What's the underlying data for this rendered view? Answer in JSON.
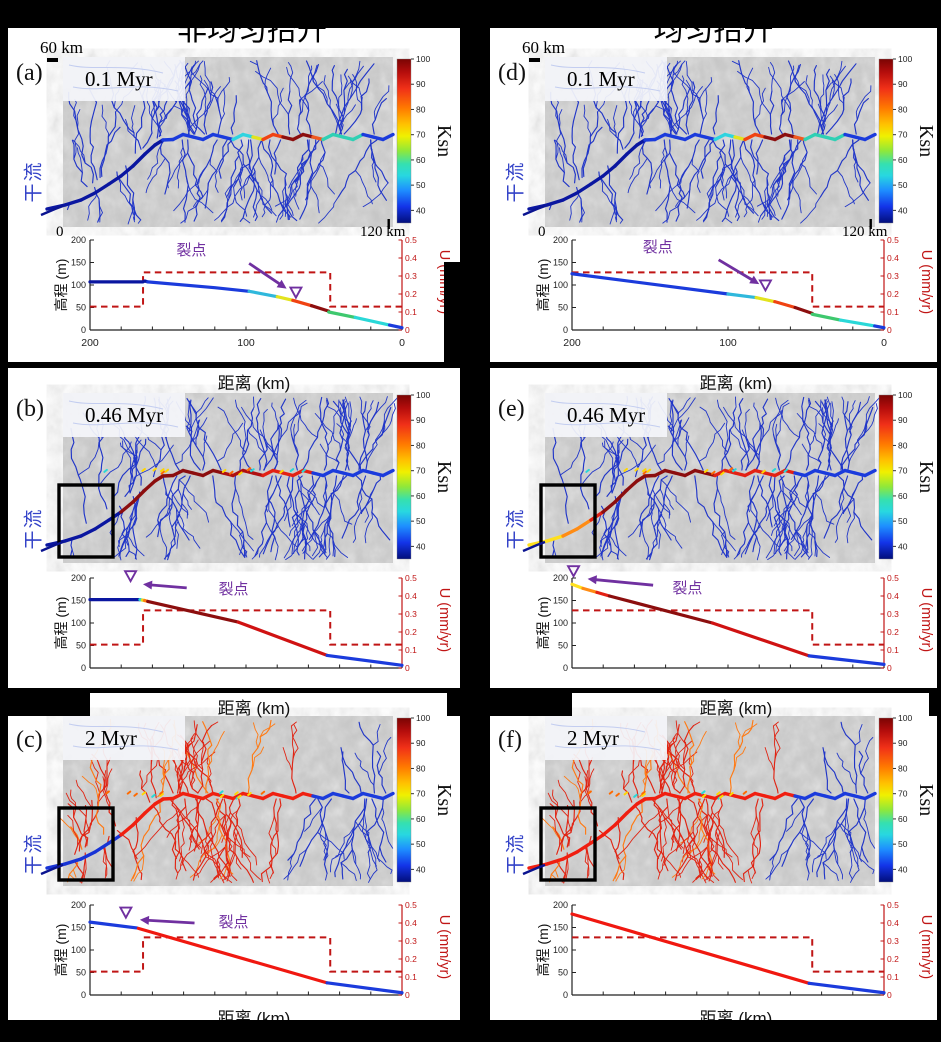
{
  "titles": {
    "left": "非均匀抬升",
    "right": "均匀抬升"
  },
  "shared": {
    "scale_bar_label": "60 km",
    "map_origin_label": "0",
    "map_extent_label": "120 km",
    "main_stream_label": "干流",
    "colorbar": {
      "label": "Ksn",
      "ticks": [
        100,
        90,
        80,
        70,
        60,
        50,
        40
      ],
      "min": 35,
      "max": 100,
      "gradient": [
        [
          "#7a0403",
          0
        ],
        [
          "#b50d0c",
          8
        ],
        [
          "#f03018",
          18
        ],
        [
          "#ff7a00",
          30
        ],
        [
          "#ffc300",
          40
        ],
        [
          "#f0f000",
          47
        ],
        [
          "#8fe83a",
          56
        ],
        [
          "#35e0b0",
          64
        ],
        [
          "#28d8e0",
          71
        ],
        [
          "#1e8fff",
          80
        ],
        [
          "#1334e8",
          90
        ],
        [
          "#020e7a",
          100
        ]
      ]
    },
    "profile_axes": {
      "ylabel": "高程 (m)",
      "xlabel": "距离 (km)",
      "right_ylabel": "U (mm/yr)",
      "left_ticks": [
        0,
        50,
        100,
        150,
        200
      ],
      "right_ticks": [
        0,
        0.1,
        0.2,
        0.3,
        0.4,
        0.5
      ],
      "x_ticks": [
        200,
        180,
        160,
        140,
        120,
        100,
        80,
        60,
        40,
        20,
        0
      ],
      "x_tick_labels": [
        200,
        100,
        0
      ],
      "annotation_label": "裂点"
    },
    "colors": {
      "uplift": "#c01515",
      "annotation": "#7030a0",
      "axis": "#222222",
      "stream": "#2136c8"
    }
  },
  "panels": [
    {
      "letter": "(a)",
      "time": "0.1 Myr",
      "column": 0,
      "row": 0,
      "box": false,
      "trunk": "a",
      "tribs": "blue",
      "specks": false
    },
    {
      "letter": "(b)",
      "time": "0.46 Myr",
      "column": 0,
      "row": 1,
      "box": true,
      "trunk": "b",
      "tribs": "blue",
      "specks": true
    },
    {
      "letter": "(c)",
      "time": "2 Myr",
      "column": 0,
      "row": 2,
      "box": true,
      "trunk": "c",
      "tribs": "red-left",
      "specks": true
    },
    {
      "letter": "(d)",
      "time": "0.1 Myr",
      "column": 1,
      "row": 0,
      "box": false,
      "trunk": "a",
      "tribs": "blue",
      "specks": false
    },
    {
      "letter": "(e)",
      "time": "0.46 Myr",
      "column": 1,
      "row": 1,
      "box": true,
      "trunk": "e",
      "tribs": "blue",
      "specks": true
    },
    {
      "letter": "(f)",
      "time": "2 Myr",
      "column": 1,
      "row": 2,
      "box": true,
      "trunk": "f",
      "tribs": "red-left",
      "specks": true
    }
  ],
  "trunk_styles": {
    "a": [
      [
        100,
        "#0a16a0"
      ],
      [
        170,
        "#1b3bdc"
      ],
      [
        186,
        "#2fd4e0"
      ],
      [
        198,
        "#e3e31e"
      ],
      [
        222,
        "#f04312"
      ],
      [
        246,
        "#8c0e0e"
      ],
      [
        258,
        "#f05a20"
      ],
      [
        296,
        "#2fd0b4"
      ],
      [
        999,
        "#1b3bdc"
      ]
    ],
    "b": [
      [
        58,
        "#0a16a0"
      ],
      [
        160,
        "#8c0e0e"
      ],
      [
        200,
        "#b01010"
      ],
      [
        246,
        "#e32114"
      ],
      [
        999,
        "#1b3bdc"
      ]
    ],
    "c": [
      [
        58,
        "#1733d6"
      ],
      [
        246,
        "#f02010"
      ],
      [
        999,
        "#1b3bdc"
      ]
    ],
    "e": [
      [
        20,
        "#ffe01e"
      ],
      [
        40,
        "#ff8c14"
      ],
      [
        58,
        "#e32114"
      ],
      [
        170,
        "#8c0e0e"
      ],
      [
        246,
        "#e32114"
      ],
      [
        999,
        "#1b3bdc"
      ]
    ],
    "f": [
      [
        246,
        "#f01e10"
      ],
      [
        999,
        "#1b3bdc"
      ]
    ]
  },
  "chart_data": [
    {
      "type": "line",
      "panel": "a",
      "time_label": "0.1 Myr",
      "xlabel": "距离 (km)",
      "ylabel": "高程 (m)",
      "ylabel_right": "U (mm/yr)",
      "xlim": [
        200,
        0
      ],
      "ylim": [
        0,
        200
      ],
      "ylim_right": [
        0,
        0.5
      ],
      "x_numbers": true,
      "elevation_segments": [
        {
          "color": "#0a16a0",
          "points": [
            [
              200,
              107
            ],
            [
              166,
              107
            ],
            [
              165,
              109
            ],
            [
              163,
              107
            ]
          ]
        },
        {
          "color": "#1b3bdc",
          "points": [
            [
              163,
              107
            ],
            [
              120,
              94
            ],
            [
              98,
              86
            ]
          ]
        },
        {
          "color": "#2fb8dc",
          "points": [
            [
              98,
              86
            ],
            [
              80,
              74
            ]
          ]
        },
        {
          "color": "#e3e31e",
          "points": [
            [
              80,
              74
            ],
            [
              70,
              66
            ]
          ]
        },
        {
          "color": "#f04312",
          "points": [
            [
              70,
              66
            ],
            [
              58,
              54
            ]
          ]
        },
        {
          "color": "#8c0e0e",
          "points": [
            [
              58,
              54
            ],
            [
              47,
              42
            ]
          ]
        },
        {
          "color": "#3ec86e",
          "points": [
            [
              47,
              40
            ],
            [
              30,
              28
            ]
          ]
        },
        {
          "color": "#2ad8d8",
          "points": [
            [
              30,
              28
            ],
            [
              8,
              11
            ]
          ]
        },
        {
          "color": "#1b3bdc",
          "points": [
            [
              8,
              11
            ],
            [
              0,
              5
            ]
          ]
        }
      ],
      "uplift_steps": [
        [
          200,
          0.13
        ],
        [
          166,
          0.13
        ],
        [
          166,
          0.32
        ],
        [
          46,
          0.32
        ],
        [
          46,
          0.13
        ],
        [
          0,
          0.13
        ]
      ],
      "annotation": {
        "marker": [
          68,
          72
        ],
        "arrow": [
          [
            98,
            148
          ],
          [
            74,
            92
          ]
        ],
        "text": [
          135,
          178
        ]
      }
    },
    {
      "type": "line",
      "panel": "b",
      "time_label": "0.46 Myr",
      "xlabel": "距离 (km)",
      "ylabel": "高程 (m)",
      "ylabel_right": "U (mm/yr)",
      "xlim": [
        200,
        0
      ],
      "ylim": [
        0,
        200
      ],
      "ylim_right": [
        0,
        0.5
      ],
      "x_numbers": false,
      "elevation_segments": [
        {
          "color": "#0a16a0",
          "points": [
            [
              200,
              152
            ],
            [
              168,
              152
            ]
          ]
        },
        {
          "color": "#2ad8d8",
          "points": [
            [
              168,
              152
            ],
            [
              166.5,
              151
            ]
          ]
        },
        {
          "color": "#e8d820",
          "points": [
            [
              166.5,
              151
            ],
            [
              165,
              150
            ]
          ]
        },
        {
          "color": "#ff7a10",
          "points": [
            [
              165,
              150
            ],
            [
              163,
              148
            ]
          ]
        },
        {
          "color": "#8c0e0e",
          "points": [
            [
              163,
              148
            ],
            [
              105,
              102
            ]
          ]
        },
        {
          "color": "#d01212",
          "points": [
            [
              105,
              102
            ],
            [
              48,
              28
            ]
          ]
        },
        {
          "color": "#1b3bdc",
          "points": [
            [
              48,
              28
            ],
            [
              0,
              6
            ]
          ]
        }
      ],
      "uplift_steps": [
        [
          200,
          0.13
        ],
        [
          166,
          0.13
        ],
        [
          166,
          0.32
        ],
        [
          46,
          0.32
        ],
        [
          46,
          0.13
        ],
        [
          0,
          0.13
        ]
      ],
      "annotation": {
        "marker": [
          174,
          193
        ],
        "arrow": [
          [
            138,
            178
          ],
          [
            166,
            186
          ]
        ],
        "text": [
          108,
          176
        ]
      }
    },
    {
      "type": "line",
      "panel": "c",
      "time_label": "2 Myr",
      "xlabel": "距离 (km)",
      "ylabel": "高程 (m)",
      "ylabel_right": "U (mm/yr)",
      "xlim": [
        200,
        0
      ],
      "ylim": [
        0,
        200
      ],
      "ylim_right": [
        0,
        0.5
      ],
      "x_numbers": false,
      "elevation_segments": [
        {
          "color": "#1b3bdc",
          "points": [
            [
              200,
              162
            ],
            [
              170,
              149
            ]
          ]
        },
        {
          "color": "#f01810",
          "points": [
            [
              169,
              148
            ],
            [
              48,
              27
            ]
          ]
        },
        {
          "color": "#1b3bdc",
          "points": [
            [
              48,
              27
            ],
            [
              0,
              5
            ]
          ]
        }
      ],
      "uplift_steps": [
        [
          200,
          0.13
        ],
        [
          166,
          0.13
        ],
        [
          166,
          0.32
        ],
        [
          46,
          0.32
        ],
        [
          46,
          0.13
        ],
        [
          0,
          0.13
        ]
      ],
      "annotation": {
        "marker": [
          177,
          172
        ],
        "arrow": [
          [
            133,
            160
          ],
          [
            168,
            167
          ]
        ],
        "text": [
          108,
          162
        ]
      }
    },
    {
      "type": "line",
      "panel": "d",
      "time_label": "0.1 Myr",
      "xlabel": "距离 (km)",
      "ylabel": "高程 (m)",
      "ylabel_right": "U (mm/yr)",
      "xlim": [
        200,
        0
      ],
      "ylim": [
        0,
        200
      ],
      "ylim_right": [
        0,
        0.5
      ],
      "x_numbers": true,
      "elevation_segments": [
        {
          "color": "#1b3bdc",
          "points": [
            [
              200,
              125
            ],
            [
              100,
              80
            ]
          ]
        },
        {
          "color": "#2fb8dc",
          "points": [
            [
              100,
              80
            ],
            [
              82,
              72
            ]
          ]
        },
        {
          "color": "#e3e31e",
          "points": [
            [
              82,
              72
            ],
            [
              70,
              63
            ]
          ]
        },
        {
          "color": "#f04312",
          "points": [
            [
              70,
              63
            ],
            [
              57,
              50
            ]
          ]
        },
        {
          "color": "#8c0e0e",
          "points": [
            [
              57,
              50
            ],
            [
              46,
              37
            ]
          ]
        },
        {
          "color": "#3ec86e",
          "points": [
            [
              46,
              35
            ],
            [
              28,
              22
            ]
          ]
        },
        {
          "color": "#2ad8d8",
          "points": [
            [
              28,
              22
            ],
            [
              6,
              9
            ]
          ]
        },
        {
          "color": "#1b3bdc",
          "points": [
            [
              6,
              9
            ],
            [
              0,
              5
            ]
          ]
        }
      ],
      "uplift_steps": [
        [
          200,
          0.32
        ],
        [
          46,
          0.32
        ],
        [
          46,
          0.13
        ],
        [
          0,
          0.13
        ]
      ],
      "annotation": {
        "marker": [
          76,
          88
        ],
        "arrow": [
          [
            106,
            156
          ],
          [
            80,
            102
          ]
        ],
        "text": [
          145,
          185
        ]
      }
    },
    {
      "type": "line",
      "panel": "e",
      "time_label": "0.46 Myr",
      "xlabel": "距离 (km)",
      "ylabel": "高程 (m)",
      "ylabel_right": "U (mm/yr)",
      "xlim": [
        200,
        0
      ],
      "ylim": [
        0,
        200
      ],
      "ylim_right": [
        0,
        0.5
      ],
      "x_numbers": false,
      "elevation_segments": [
        {
          "color": "#ffe01e",
          "points": [
            [
              200,
              186
            ],
            [
              193,
              177
            ]
          ]
        },
        {
          "color": "#ff8c14",
          "points": [
            [
              193,
              177
            ],
            [
              184,
              168
            ]
          ]
        },
        {
          "color": "#e32114",
          "points": [
            [
              184,
              168
            ],
            [
              176,
              160
            ]
          ]
        },
        {
          "color": "#8c0e0e",
          "points": [
            [
              176,
              160
            ],
            [
              110,
              100
            ]
          ]
        },
        {
          "color": "#d01212",
          "points": [
            [
              110,
              100
            ],
            [
              48,
              27
            ]
          ]
        },
        {
          "color": "#1b3bdc",
          "points": [
            [
              48,
              27
            ],
            [
              0,
              8
            ]
          ]
        }
      ],
      "uplift_steps": [
        [
          200,
          0.32
        ],
        [
          46,
          0.32
        ],
        [
          46,
          0.13
        ],
        [
          0,
          0.13
        ]
      ],
      "annotation": {
        "marker": [
          199,
          204
        ],
        "arrow": [
          [
            148,
            184
          ],
          [
            190,
            198
          ]
        ],
        "text": [
          126,
          178
        ]
      }
    },
    {
      "type": "line",
      "panel": "f",
      "time_label": "2 Myr",
      "xlabel": "距离 (km)",
      "ylabel": "高程 (m)",
      "ylabel_right": "U (mm/yr)",
      "xlim": [
        200,
        0
      ],
      "ylim": [
        0,
        200
      ],
      "ylim_right": [
        0,
        0.5
      ],
      "x_numbers": false,
      "elevation_segments": [
        {
          "color": "#f01810",
          "points": [
            [
              200,
              180
            ],
            [
              48,
              26
            ]
          ]
        },
        {
          "color": "#1b3bdc",
          "points": [
            [
              48,
              26
            ],
            [
              0,
              5
            ]
          ]
        }
      ],
      "uplift_steps": [
        [
          200,
          0.32
        ],
        [
          46,
          0.32
        ],
        [
          46,
          0.13
        ],
        [
          0,
          0.13
        ]
      ],
      "annotation": null
    }
  ]
}
